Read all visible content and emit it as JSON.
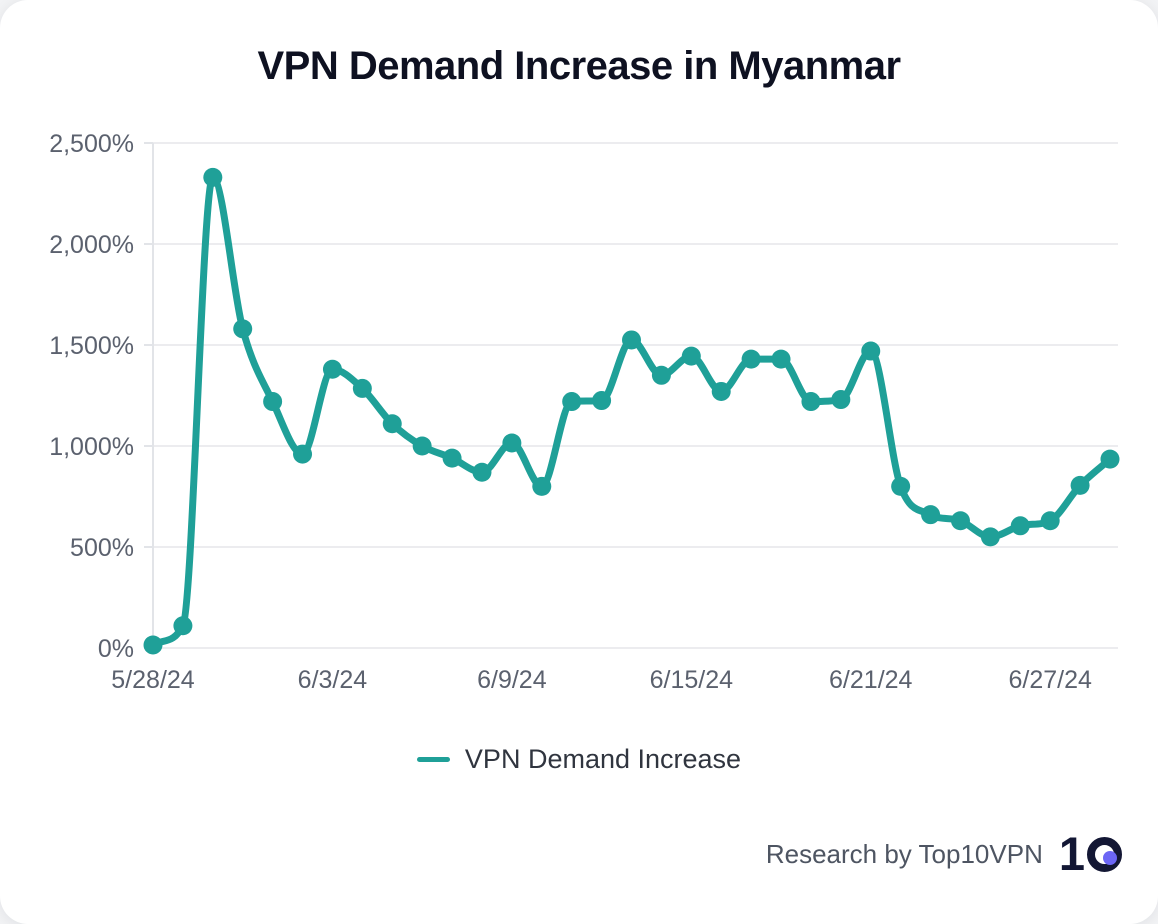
{
  "title": "VPN Demand Increase in Myanmar",
  "legend": {
    "label": "VPN Demand Increase"
  },
  "footer": {
    "credit": "Research by Top10VPN",
    "logo": {
      "one": "1"
    }
  },
  "colors": {
    "line": "#1fa098",
    "title_text": "#0e1121",
    "axis_text": "#5b616e",
    "grid": "#ececef",
    "axis_border": "#e2e4e8",
    "legend_text": "#30353f",
    "footer_text": "#4e5562",
    "logo_navy": "#131734",
    "logo_dot": "#6c66f5",
    "background": "#ffffff"
  },
  "chart_data": {
    "type": "line",
    "title": "VPN Demand Increase in Myanmar",
    "xlabel": "",
    "ylabel": "",
    "ylim": [
      0,
      2500
    ],
    "y_tick_interval": 500,
    "y_ticks": [
      "0%",
      "500%",
      "1,000%",
      "1,500%",
      "2,000%",
      "2,500%"
    ],
    "grid": "horizontal",
    "legend_position": "bottom",
    "x": [
      "5/28/24",
      "5/29/24",
      "5/30/24",
      "5/31/24",
      "6/1/24",
      "6/2/24",
      "6/3/24",
      "6/4/24",
      "6/5/24",
      "6/6/24",
      "6/7/24",
      "6/8/24",
      "6/9/24",
      "6/10/24",
      "6/11/24",
      "6/12/24",
      "6/13/24",
      "6/14/24",
      "6/15/24",
      "6/16/24",
      "6/17/24",
      "6/18/24",
      "6/19/24",
      "6/20/24",
      "6/21/24",
      "6/22/24",
      "6/23/24",
      "6/24/24",
      "6/25/24",
      "6/26/24",
      "6/27/24",
      "6/28/24",
      "6/29/24"
    ],
    "series": [
      {
        "name": "VPN Demand Increase",
        "values": [
          15,
          110,
          2330,
          1580,
          1220,
          960,
          1380,
          1285,
          1110,
          1000,
          940,
          870,
          1015,
          800,
          1220,
          1225,
          1525,
          1350,
          1445,
          1270,
          1430,
          1430,
          1220,
          1230,
          1470,
          800,
          660,
          630,
          550,
          605,
          630,
          805,
          935
        ]
      }
    ],
    "x_ticks": [
      {
        "label": "5/28/24",
        "index": 0
      },
      {
        "label": "6/3/24",
        "index": 6
      },
      {
        "label": "6/9/24",
        "index": 12
      },
      {
        "label": "6/15/24",
        "index": 18
      },
      {
        "label": "6/21/24",
        "index": 24
      },
      {
        "label": "6/27/24",
        "index": 30
      }
    ]
  }
}
